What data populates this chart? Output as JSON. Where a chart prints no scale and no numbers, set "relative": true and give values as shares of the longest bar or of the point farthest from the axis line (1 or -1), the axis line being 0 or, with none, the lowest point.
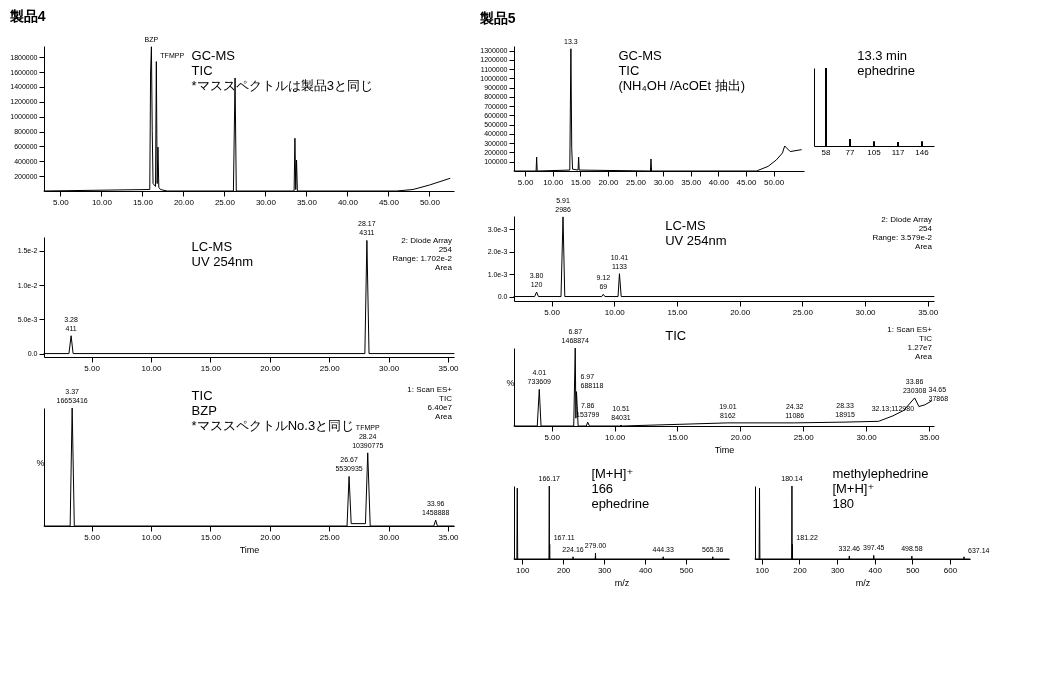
{
  "chart_data": [
    {
      "type": "line",
      "title": "製品4",
      "annotations": [
        "GC-MS",
        "TIC",
        "*マススペクトルは製品3と同じ",
        {
          "text": "BZP",
          "x": 16.1,
          "y": 1940000
        },
        {
          "text": "TFMPP",
          "x": 16.7,
          "y": 1740000
        }
      ],
      "x": [
        3,
        15.9,
        16.0,
        16.1,
        16.2,
        16.3,
        16.45,
        16.6,
        16.7,
        16.8,
        16.9,
        17.0,
        17.2,
        18,
        26.1,
        26.3,
        26.45,
        33.5,
        33.6,
        33.7,
        33.8,
        33.9,
        46,
        48,
        50,
        52.5
      ],
      "series": [
        {
          "color": "#000000",
          "values": [
            0,
            20000,
            1600000,
            1940000,
            810000,
            100000,
            80000,
            60000,
            1740000,
            100000,
            590000,
            50000,
            20000,
            0,
            0,
            1520000,
            0,
            0,
            710000,
            20000,
            415000,
            0,
            0,
            20000,
            80000,
            170000
          ]
        }
      ],
      "xlim": [
        3,
        53
      ],
      "xticks": [
        {
          "value": 5,
          "label": "5.00"
        },
        {
          "value": 10,
          "label": "10.00"
        },
        {
          "value": 15,
          "label": "15.00"
        },
        {
          "value": 20,
          "label": "20.00"
        },
        {
          "value": 25,
          "label": "25.00"
        },
        {
          "value": 30,
          "label": "30.00"
        },
        {
          "value": 35,
          "label": "35.00"
        },
        {
          "value": 40,
          "label": "40.00"
        },
        {
          "value": 45,
          "label": "45.00"
        },
        {
          "value": 50,
          "label": "50.00"
        }
      ],
      "ylim": [
        0,
        1950000
      ],
      "yticks": [
        200000,
        400000,
        600000,
        800000,
        1000000,
        1200000,
        1400000,
        1600000,
        1800000
      ]
    },
    {
      "type": "line",
      "title": "製品5",
      "annotations": [
        "GC-MS",
        "TIC",
        "(NH₄OH /AcOEt 抽出)",
        {
          "text": "13.3",
          "x": 13.3,
          "y": 1320000
        }
      ],
      "x": [
        3,
        7.0,
        7.1,
        7.2,
        13.1,
        13.3,
        13.45,
        13.6,
        14.6,
        14.7,
        14.8,
        27.7,
        27.8,
        27.9,
        46.9,
        49,
        50.5,
        51.6,
        52,
        53,
        55
      ],
      "series": [
        {
          "color": "#000000",
          "values": [
            0,
            0,
            150000,
            0,
            10000,
            1320000,
            250000,
            20000,
            10000,
            150000,
            10000,
            0,
            130000,
            0,
            0,
            50000,
            120000,
            195000,
            270000,
            210000,
            230000
          ]
        }
      ],
      "xlim": [
        3,
        55.5
      ],
      "xticks": [
        {
          "value": 5,
          "label": "5.00"
        },
        {
          "value": 10,
          "label": "10.00"
        },
        {
          "value": 15,
          "label": "15.00"
        },
        {
          "value": 20,
          "label": "20.00"
        },
        {
          "value": 25,
          "label": "25.00"
        },
        {
          "value": 30,
          "label": "30.00"
        },
        {
          "value": 35,
          "label": "35.00"
        },
        {
          "value": 40,
          "label": "40.00"
        },
        {
          "value": 45,
          "label": "45.00"
        },
        {
          "value": 50,
          "label": "50.00"
        }
      ],
      "ylim": [
        0,
        1350000
      ],
      "yticks": [
        100000,
        200000,
        300000,
        400000,
        500000,
        600000,
        700000,
        800000,
        900000,
        1000000,
        1100000,
        1200000,
        1300000
      ]
    },
    {
      "type": "bar",
      "relative": true,
      "annotations": [
        "13.3 min",
        "ephedrine"
      ],
      "categories": [
        "58",
        "77",
        "105",
        "117",
        "146"
      ],
      "series": [
        {
          "color": "#000000",
          "values": [
            1,
            0.09,
            0.06,
            0.05,
            0.06
          ]
        }
      ]
    },
    {
      "type": "line",
      "subtitle": "2: Diode Array\n254\nRange: 1.702e-2\nArea",
      "annotations": [
        "LC-MS",
        "UV 254nm",
        {
          "text": "3.28\n411",
          "x": 3.28,
          "y": 0.0026
        },
        {
          "text": "28.17\n4311",
          "x": 28.17,
          "y": 0.0165
        }
      ],
      "x": [
        1,
        3.1,
        3.28,
        3.45,
        28.0,
        28.17,
        28.35,
        35.5
      ],
      "series": [
        {
          "color": "#000000",
          "values": [
            0,
            0,
            0.0026,
            0,
            0,
            0.0165,
            0,
            0
          ]
        }
      ],
      "xlim": [
        1,
        35.5
      ],
      "xticks": [
        {
          "value": 5,
          "label": "5.00"
        },
        {
          "value": 10,
          "label": "10.00"
        },
        {
          "value": 15,
          "label": "15.00"
        },
        {
          "value": 20,
          "label": "20.00"
        },
        {
          "value": 25,
          "label": "25.00"
        },
        {
          "value": 30,
          "label": "30.00"
        },
        {
          "value": 35,
          "label": "35.00"
        }
      ],
      "ylim": [
        -0.0005,
        0.017
      ],
      "yticks": [
        {
          "value": 0,
          "label": "0.0"
        },
        {
          "value": 0.005,
          "label": "5.0e-3"
        },
        {
          "value": 0.01,
          "label": "1.0e-2"
        },
        {
          "value": 0.015,
          "label": "1.5e-2"
        }
      ]
    },
    {
      "type": "line",
      "relative": true,
      "xlabel": "Time",
      "ylabel": "%",
      "subtitle": "1: Scan ES+\nTIC\n6.40e7\nArea",
      "annotations": [
        "TIC",
        "BZP",
        "*マススペクトルNo.3と同じ",
        {
          "text": "3.37\n16653416",
          "x": 3.37,
          "y": 1
        },
        {
          "text": "26.67\n5530935",
          "x": 26.67,
          "y": 0.42
        },
        {
          "text": "TFMPP\n28.24\n10390775",
          "x": 28.24,
          "y": 0.62
        },
        {
          "text": "33.96\n1458888",
          "x": 33.96,
          "y": 0.05
        }
      ],
      "x": [
        1,
        3.2,
        3.37,
        3.55,
        26.5,
        26.67,
        26.85,
        28.05,
        28.24,
        28.45,
        33.8,
        33.96,
        34.1,
        35.5
      ],
      "series": [
        {
          "color": "#000000",
          "values": [
            0,
            0,
            1,
            0,
            0,
            0.42,
            0.02,
            0.02,
            0.62,
            0,
            0,
            0.05,
            0,
            0
          ]
        }
      ],
      "xlim": [
        1,
        35.5
      ],
      "xticks": [
        {
          "value": 5,
          "label": "5.00"
        },
        {
          "value": 10,
          "label": "10.00"
        },
        {
          "value": 15,
          "label": "15.00"
        },
        {
          "value": 20,
          "label": "20.00"
        },
        {
          "value": 25,
          "label": "25.00"
        },
        {
          "value": 30,
          "label": "30.00"
        },
        {
          "value": 35,
          "label": "35.00"
        }
      ]
    },
    {
      "type": "line",
      "subtitle": "2: Diode Array\n254\nRange: 3.579e-2\nArea",
      "annotations": [
        "LC-MS",
        "UV 254nm",
        {
          "text": "3.80\n120",
          "x": 3.8,
          "y": 0.0002
        },
        {
          "text": "5.91\n2986",
          "x": 5.91,
          "y": 0.00356
        },
        {
          "text": "9.12\n69",
          "x": 9.12,
          "y": 0.0001
        },
        {
          "text": "10.41\n1133",
          "x": 10.41,
          "y": 0.00102
        }
      ],
      "x": [
        2,
        3.65,
        3.8,
        3.95,
        5.75,
        5.91,
        6.05,
        9.0,
        9.12,
        9.25,
        10.3,
        10.41,
        10.55,
        35.5
      ],
      "series": [
        {
          "color": "#000000",
          "values": [
            0,
            0,
            0.0002,
            0,
            0,
            0.00356,
            0,
            0,
            0.0001,
            0,
            0,
            0.00102,
            0,
            0
          ]
        }
      ],
      "xlim": [
        2,
        35.5
      ],
      "xticks": [
        {
          "value": 5,
          "label": "5.00"
        },
        {
          "value": 10,
          "label": "10.00"
        },
        {
          "value": 15,
          "label": "15.00"
        },
        {
          "value": 20,
          "label": "20.00"
        },
        {
          "value": 25,
          "label": "25.00"
        },
        {
          "value": 30,
          "label": "30.00"
        },
        {
          "value": 35,
          "label": "35.00"
        }
      ],
      "ylim": [
        -0.0002,
        0.0036
      ],
      "yticks": [
        {
          "value": 0,
          "label": "0.0"
        },
        {
          "value": 0.001,
          "label": "1.0e-3"
        },
        {
          "value": 0.002,
          "label": "2.0e-3"
        },
        {
          "value": 0.003,
          "label": "3.0e-3"
        }
      ]
    },
    {
      "type": "line",
      "relative": true,
      "xlabel": "Time",
      "ylabel": "%",
      "subtitle": "1: Scan ES+\nTIC\n1.27e7\nArea",
      "annotations": [
        "TIC",
        {
          "text": "4.01\n733609",
          "x": 4.01,
          "y": 0.47
        },
        {
          "text": "6.87\n1468874",
          "x": 6.87,
          "y": 1
        },
        {
          "text": "6.97\n688118",
          "x": 6.97,
          "y": 0.44
        },
        {
          "text": "7.86\n153799",
          "x": 7.86,
          "y": 0.05
        },
        {
          "text": "10.51\n84031",
          "x": 10.51,
          "y": 0.01
        },
        {
          "text": "19.01\n8162",
          "x": 19.01,
          "y": 0.04
        },
        {
          "text": "24.32\n11086",
          "x": 24.32,
          "y": 0.04
        },
        {
          "text": "28.33\n18915",
          "x": 28.33,
          "y": 0.05
        },
        {
          "text": "32.13;112980",
          "x": 32.13,
          "y": 0.13
        },
        {
          "text": "33.86\n230308",
          "x": 33.86,
          "y": 0.36
        },
        {
          "text": "34.65\n37868",
          "x": 34.65,
          "y": 0.27
        }
      ],
      "x": [
        2,
        3.85,
        4.01,
        4.15,
        6.75,
        6.87,
        6.92,
        6.97,
        7.1,
        7.75,
        7.86,
        8.0,
        10.4,
        10.51,
        10.6,
        19.01,
        24.32,
        28.33,
        31,
        32.13,
        33.0,
        33.86,
        34.2,
        34.65,
        35.2
      ],
      "series": [
        {
          "color": "#000000",
          "values": [
            0,
            0,
            0.47,
            0,
            0,
            1,
            0.1,
            0.44,
            0,
            0,
            0.05,
            0,
            0,
            0.01,
            0,
            0.04,
            0.04,
            0.05,
            0.06,
            0.13,
            0.2,
            0.36,
            0.25,
            0.27,
            0.32
          ]
        }
      ],
      "xlim": [
        2,
        35.4
      ],
      "xticks": [
        {
          "value": 5,
          "label": "5.00"
        },
        {
          "value": 10,
          "label": "10.00"
        },
        {
          "value": 15,
          "label": "15.00"
        },
        {
          "value": 20,
          "label": "20.00"
        },
        {
          "value": 25,
          "label": "25.00"
        },
        {
          "value": 30,
          "label": "30.00"
        },
        {
          "value": 35,
          "label": "35.00"
        }
      ]
    },
    {
      "type": "line",
      "relative": true,
      "xlabel": "m/z",
      "annotations": [
        "[M+H]⁺\n166",
        "ephedrine",
        {
          "text": "166.17",
          "x": 166.17,
          "y": 1
        },
        {
          "text": "167.11",
          "x": 167.11,
          "y": 0.2
        },
        {
          "text": "224.16",
          "x": 224.16,
          "y": 0.03
        },
        {
          "text": "279.00",
          "x": 279,
          "y": 0.08
        },
        {
          "text": "444.33",
          "x": 444.33,
          "y": 0.03
        },
        {
          "text": "565.36",
          "x": 565.36,
          "y": 0.03
        }
      ],
      "x": [
        80,
        87,
        88,
        89,
        165.5,
        166.17,
        166.6,
        167.11,
        167.6,
        223.5,
        224.16,
        224.8,
        278.5,
        279,
        279.5,
        443.8,
        444.33,
        444.8,
        564.8,
        565.36,
        565.9,
        605
      ],
      "series": [
        {
          "color": "#000000",
          "values": [
            0,
            0,
            0.97,
            0,
            0,
            1,
            0,
            0.2,
            0,
            0,
            0.03,
            0,
            0,
            0.08,
            0,
            0,
            0.03,
            0,
            0,
            0.03,
            0,
            0
          ]
        }
      ],
      "xlim": [
        80,
        605
      ],
      "xticks": [
        100,
        200,
        300,
        400,
        500
      ]
    },
    {
      "type": "line",
      "relative": true,
      "xlabel": "m/z",
      "annotations": [
        "methylephedrine",
        "[M+H]⁺\n180",
        {
          "text": "180.14",
          "x": 180.14,
          "y": 1
        },
        {
          "text": "181.22",
          "x": 181.22,
          "y": 0.2
        },
        {
          "text": "332.46",
          "x": 332.46,
          "y": 0.04
        },
        {
          "text": "397.45",
          "x": 397.45,
          "y": 0.05
        },
        {
          "text": "498.58",
          "x": 498.58,
          "y": 0.04
        },
        {
          "text": "637.14",
          "x": 637.14,
          "y": 0.03
        }
      ],
      "x": [
        82,
        93,
        94,
        95,
        179.5,
        180.14,
        180.6,
        181.22,
        181.7,
        331.8,
        332.46,
        333,
        396.8,
        397.45,
        398,
        497.9,
        498.58,
        499.2,
        636.5,
        637.14,
        637.7,
        653
      ],
      "series": [
        {
          "color": "#000000",
          "values": [
            0,
            0,
            0.97,
            0,
            0,
            1,
            0,
            0.2,
            0,
            0,
            0.04,
            0,
            0,
            0.05,
            0,
            0,
            0.04,
            0,
            0,
            0.03,
            0,
            0
          ]
        }
      ],
      "xlim": [
        82,
        653
      ],
      "xticks": [
        100,
        200,
        300,
        400,
        500,
        600
      ]
    }
  ]
}
